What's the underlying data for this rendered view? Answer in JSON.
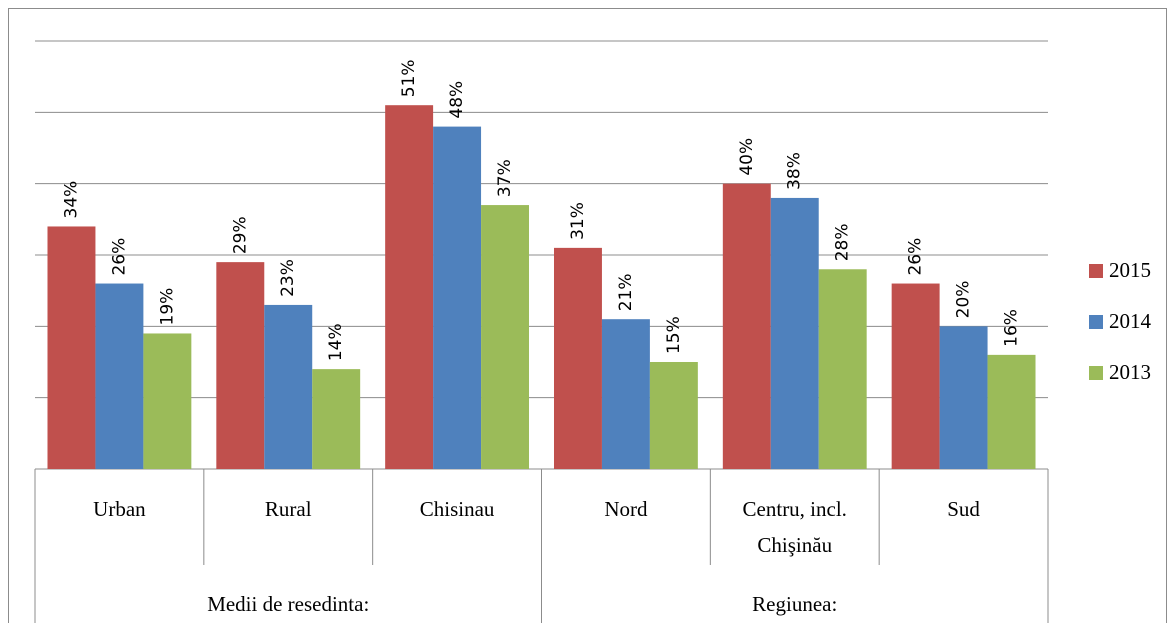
{
  "chart_data": {
    "type": "bar",
    "category_groups": [
      {
        "name": "Medii de resedinta:",
        "categories": [
          "Urban",
          "Rural",
          "Chisinau"
        ]
      },
      {
        "name": "Regiunea:",
        "categories": [
          "Nord",
          "Centru, incl. Chişinău",
          "Sud"
        ]
      }
    ],
    "series": [
      {
        "name": "2015",
        "color": "#c0504d",
        "values": [
          34,
          29,
          51,
          31,
          40,
          26
        ],
        "value_labels": [
          "34%",
          "29%",
          "51%",
          "31%",
          "40%",
          "26%"
        ]
      },
      {
        "name": "2014",
        "color": "#4f81bd",
        "values": [
          26,
          23,
          48,
          21,
          38,
          20
        ],
        "value_labels": [
          "26%",
          "23%",
          "48%",
          "21%",
          "38%",
          "20%"
        ]
      },
      {
        "name": "2013",
        "color": "#9bbb59",
        "values": [
          19,
          14,
          37,
          15,
          28,
          16
        ],
        "value_labels": [
          "19%",
          "14%",
          "37%",
          "15%",
          "28%",
          "16%"
        ]
      }
    ],
    "ylim": [
      0,
      60
    ],
    "yticks": [
      0,
      10,
      20,
      30,
      40,
      50,
      60
    ],
    "grid": true,
    "legend": "right"
  }
}
